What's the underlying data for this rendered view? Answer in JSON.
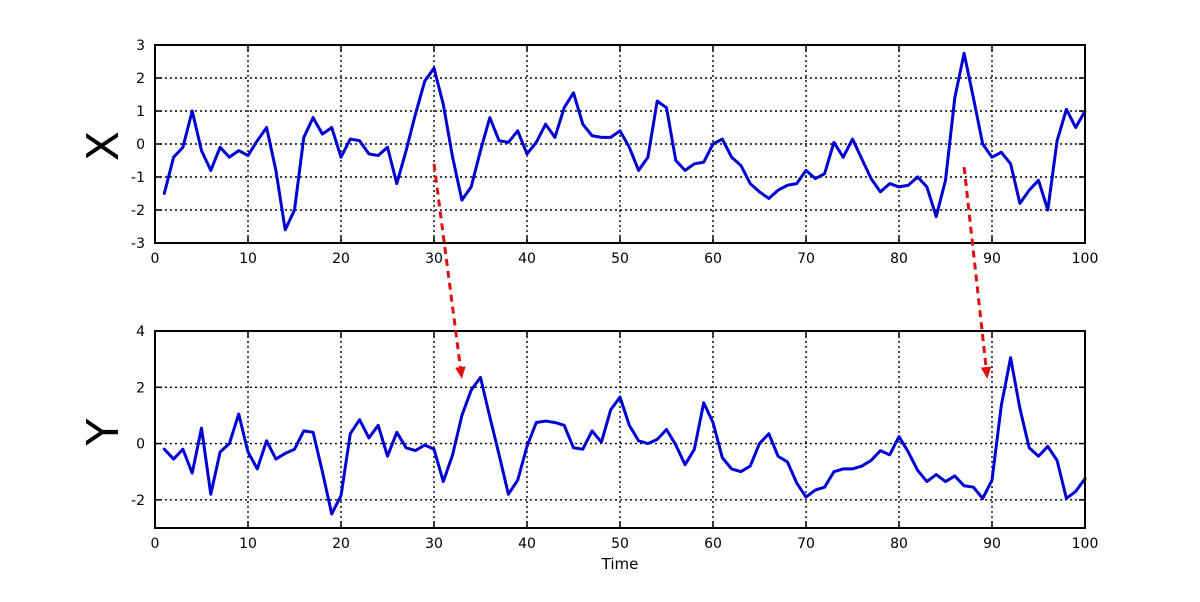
{
  "colors": {
    "series": "#0000d4",
    "arrow": "#e01010",
    "axis": "#000000"
  },
  "chart_data": [
    {
      "type": "line",
      "ylabel": "X",
      "xlabel": "",
      "xlim": [
        0,
        100
      ],
      "ylim": [
        -3,
        3
      ],
      "xticks": [
        0,
        10,
        20,
        30,
        40,
        50,
        60,
        70,
        80,
        90,
        100
      ],
      "yticks": [
        -3,
        -2,
        -1,
        0,
        1,
        2,
        3
      ],
      "grid": true,
      "series": [
        {
          "x": [
            1,
            2,
            3,
            4,
            5,
            6,
            7,
            8,
            9,
            10,
            11,
            12,
            13,
            14,
            15,
            16,
            17,
            18,
            19,
            20,
            21,
            22,
            23,
            24,
            25,
            26,
            27,
            28,
            29,
            30,
            31,
            32,
            33,
            34,
            35,
            36,
            37,
            38,
            39,
            40,
            41,
            42,
            43,
            44,
            45,
            46,
            47,
            48,
            49,
            50,
            51,
            52,
            53,
            54,
            55,
            56,
            57,
            58,
            59,
            60,
            61,
            62,
            63,
            64,
            65,
            66,
            67,
            68,
            69,
            70,
            71,
            72,
            73,
            74,
            75,
            76,
            77,
            78,
            79,
            80,
            81,
            82,
            83,
            84,
            85,
            86,
            87,
            88,
            89,
            90,
            91,
            92,
            93,
            94,
            95,
            96,
            97,
            98,
            99,
            100
          ],
          "values": [
            -1.5,
            -0.4,
            -0.1,
            1.0,
            -0.2,
            -0.8,
            -0.1,
            -0.4,
            -0.2,
            -0.35,
            0.1,
            0.5,
            -0.8,
            -2.6,
            -2.0,
            0.2,
            0.8,
            0.3,
            0.5,
            -0.4,
            0.15,
            0.1,
            -0.3,
            -0.35,
            -0.1,
            -1.2,
            -0.2,
            0.9,
            1.9,
            2.3,
            1.2,
            -0.4,
            -1.7,
            -1.3,
            -0.2,
            0.8,
            0.1,
            0.05,
            0.4,
            -0.3,
            0.05,
            0.6,
            0.2,
            1.1,
            1.55,
            0.6,
            0.25,
            0.2,
            0.2,
            0.4,
            -0.1,
            -0.8,
            -0.4,
            1.3,
            1.1,
            -0.5,
            -0.8,
            -0.6,
            -0.55,
            0.0,
            0.15,
            -0.4,
            -0.65,
            -1.2,
            -1.45,
            -1.65,
            -1.4,
            -1.25,
            -1.2,
            -0.8,
            -1.05,
            -0.9,
            0.05,
            -0.4,
            0.15,
            -0.45,
            -1.05,
            -1.45,
            -1.2,
            -1.3,
            -1.25,
            -1.0,
            -1.3,
            -2.2,
            -1.1,
            1.4,
            2.75,
            1.4,
            0.0,
            -0.4,
            -0.25,
            -0.6,
            -1.8,
            -1.4,
            -1.1,
            -2.0,
            0.1,
            1.05,
            0.5,
            1.0
          ]
        }
      ]
    },
    {
      "type": "line",
      "ylabel": "Y",
      "xlabel": "Time",
      "xlim": [
        0,
        100
      ],
      "ylim": [
        -3,
        4
      ],
      "xticks": [
        0,
        10,
        20,
        30,
        40,
        50,
        60,
        70,
        80,
        90,
        100
      ],
      "yticks": [
        -2,
        0,
        2,
        4
      ],
      "grid": true,
      "series": [
        {
          "x": [
            1,
            2,
            3,
            4,
            5,
            6,
            7,
            8,
            9,
            10,
            11,
            12,
            13,
            14,
            15,
            16,
            17,
            18,
            19,
            20,
            21,
            22,
            23,
            24,
            25,
            26,
            27,
            28,
            29,
            30,
            31,
            32,
            33,
            34,
            35,
            36,
            37,
            38,
            39,
            40,
            41,
            42,
            43,
            44,
            45,
            46,
            47,
            48,
            49,
            50,
            51,
            52,
            53,
            54,
            55,
            56,
            57,
            58,
            59,
            60,
            61,
            62,
            63,
            64,
            65,
            66,
            67,
            68,
            69,
            70,
            71,
            72,
            73,
            74,
            75,
            76,
            77,
            78,
            79,
            80,
            81,
            82,
            83,
            84,
            85,
            86,
            87,
            88,
            89,
            90,
            91,
            92,
            93,
            94,
            95,
            96,
            97,
            98,
            99,
            100
          ],
          "values": [
            -0.2,
            -0.55,
            -0.2,
            -1.05,
            0.55,
            -1.8,
            -0.3,
            0.0,
            1.05,
            -0.3,
            -0.9,
            0.1,
            -0.55,
            -0.35,
            -0.2,
            0.45,
            0.4,
            -1.0,
            -2.5,
            -1.85,
            0.35,
            0.85,
            0.2,
            0.65,
            -0.45,
            0.4,
            -0.15,
            -0.25,
            -0.05,
            -0.2,
            -1.35,
            -0.4,
            1.0,
            1.9,
            2.35,
            0.95,
            -0.4,
            -1.8,
            -1.3,
            -0.1,
            0.75,
            0.8,
            0.75,
            0.65,
            -0.15,
            -0.2,
            0.45,
            0.05,
            1.2,
            1.65,
            0.65,
            0.1,
            0.0,
            0.15,
            0.5,
            -0.05,
            -0.75,
            -0.2,
            1.45,
            0.75,
            -0.5,
            -0.9,
            -1.0,
            -0.8,
            0.0,
            0.35,
            -0.45,
            -0.65,
            -1.4,
            -1.9,
            -1.65,
            -1.55,
            -1.0,
            -0.9,
            -0.9,
            -0.8,
            -0.6,
            -0.25,
            -0.4,
            0.25,
            -0.3,
            -0.95,
            -1.35,
            -1.1,
            -1.35,
            -1.15,
            -1.5,
            -1.55,
            -1.95,
            -1.3,
            1.35,
            3.05,
            1.25,
            -0.15,
            -0.45,
            -0.1,
            -0.6,
            -1.95,
            -1.7,
            -1.25
          ]
        }
      ]
    }
  ],
  "annotations": [
    {
      "type": "arrow",
      "from": {
        "panel": 0,
        "x": 30,
        "y": -0.6
      },
      "to": {
        "panel": 1,
        "x": 33,
        "y": 2.3
      }
    },
    {
      "type": "arrow",
      "from": {
        "panel": 0,
        "x": 87,
        "y": -0.7
      },
      "to": {
        "panel": 1,
        "x": 89.5,
        "y": 2.3
      }
    }
  ]
}
